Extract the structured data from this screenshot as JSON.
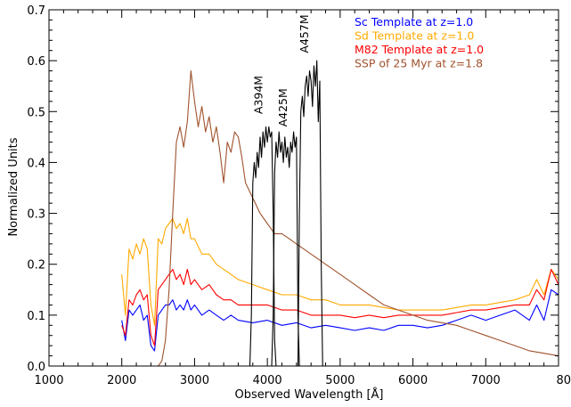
{
  "chart_data": {
    "type": "line",
    "xlabel": "Observed Wavelength [Å]",
    "ylabel": "Normalized Units",
    "xlim": [
      1000,
      8000
    ],
    "ylim": [
      0.0,
      0.7
    ],
    "x_ticks": [
      1000,
      2000,
      3000,
      4000,
      5000,
      6000,
      7000,
      8000
    ],
    "y_ticks": [
      0.0,
      0.1,
      0.2,
      0.3,
      0.4,
      0.5,
      0.6,
      0.7
    ],
    "x_tick_labels": [
      "1000",
      "2000",
      "3000",
      "4000",
      "5000",
      "6000",
      "7000",
      "8000"
    ],
    "y_tick_labels": [
      "0.0",
      "0.1",
      "0.2",
      "0.3",
      "0.4",
      "0.5",
      "0.6",
      "0.7"
    ],
    "grid": false,
    "legend_position": "top-right",
    "series": [
      {
        "name": "Sc Template at z=1.0",
        "color": "#0000ff",
        "x": [
          2000,
          2050,
          2100,
          2150,
          2200,
          2250,
          2300,
          2350,
          2400,
          2450,
          2500,
          2550,
          2600,
          2650,
          2700,
          2750,
          2800,
          2850,
          2900,
          2950,
          3000,
          3100,
          3200,
          3300,
          3400,
          3500,
          3600,
          3800,
          4000,
          4200,
          4400,
          4600,
          4800,
          5000,
          5200,
          5400,
          5600,
          5800,
          6000,
          6200,
          6400,
          6600,
          6800,
          7000,
          7200,
          7400,
          7600,
          7700,
          7800,
          7900,
          8000
        ],
        "y": [
          0.09,
          0.05,
          0.11,
          0.1,
          0.11,
          0.12,
          0.09,
          0.1,
          0.04,
          0.03,
          0.1,
          0.11,
          0.12,
          0.12,
          0.13,
          0.11,
          0.12,
          0.11,
          0.13,
          0.11,
          0.12,
          0.1,
          0.11,
          0.1,
          0.09,
          0.1,
          0.09,
          0.085,
          0.09,
          0.08,
          0.085,
          0.075,
          0.08,
          0.075,
          0.07,
          0.075,
          0.07,
          0.08,
          0.08,
          0.075,
          0.08,
          0.09,
          0.1,
          0.09,
          0.1,
          0.11,
          0.09,
          0.12,
          0.09,
          0.15,
          0.14
        ]
      },
      {
        "name": "Sd Template at z=1.0",
        "color": "#ffaa00",
        "x": [
          2000,
          2050,
          2100,
          2150,
          2200,
          2250,
          2300,
          2350,
          2400,
          2450,
          2500,
          2550,
          2600,
          2650,
          2700,
          2750,
          2800,
          2850,
          2900,
          2950,
          3000,
          3100,
          3200,
          3300,
          3400,
          3500,
          3600,
          3800,
          4000,
          4200,
          4400,
          4600,
          4800,
          5000,
          5200,
          5400,
          5600,
          5800,
          6000,
          6200,
          6400,
          6600,
          6800,
          7000,
          7200,
          7400,
          7600,
          7700,
          7800,
          7900,
          8000
        ],
        "y": [
          0.18,
          0.1,
          0.23,
          0.21,
          0.24,
          0.22,
          0.25,
          0.23,
          0.12,
          0.08,
          0.25,
          0.24,
          0.27,
          0.28,
          0.29,
          0.27,
          0.28,
          0.26,
          0.29,
          0.25,
          0.25,
          0.22,
          0.22,
          0.2,
          0.19,
          0.18,
          0.17,
          0.16,
          0.15,
          0.14,
          0.14,
          0.13,
          0.13,
          0.12,
          0.12,
          0.12,
          0.115,
          0.11,
          0.11,
          0.11,
          0.11,
          0.115,
          0.12,
          0.12,
          0.125,
          0.13,
          0.14,
          0.17,
          0.14,
          0.19,
          0.17
        ]
      },
      {
        "name": "M82 Template at z=1.0",
        "color": "#ff0000",
        "x": [
          2000,
          2050,
          2100,
          2150,
          2200,
          2250,
          2300,
          2350,
          2400,
          2450,
          2500,
          2550,
          2600,
          2650,
          2700,
          2750,
          2800,
          2850,
          2900,
          2950,
          3000,
          3100,
          3200,
          3300,
          3400,
          3500,
          3600,
          3800,
          4000,
          4200,
          4400,
          4600,
          4800,
          5000,
          5200,
          5400,
          5600,
          5800,
          6000,
          6200,
          6400,
          6600,
          6800,
          7000,
          7200,
          7400,
          7600,
          7700,
          7800,
          7900,
          8000
        ],
        "y": [
          0.08,
          0.06,
          0.13,
          0.12,
          0.14,
          0.15,
          0.13,
          0.14,
          0.06,
          0.04,
          0.15,
          0.16,
          0.17,
          0.18,
          0.19,
          0.17,
          0.18,
          0.16,
          0.19,
          0.16,
          0.17,
          0.15,
          0.16,
          0.14,
          0.13,
          0.13,
          0.12,
          0.12,
          0.12,
          0.11,
          0.11,
          0.1,
          0.1,
          0.1,
          0.095,
          0.1,
          0.095,
          0.1,
          0.1,
          0.1,
          0.1,
          0.105,
          0.11,
          0.11,
          0.115,
          0.12,
          0.12,
          0.15,
          0.13,
          0.19,
          0.16
        ]
      },
      {
        "name": "SSP of 25 Myr at z=1.8",
        "color": "#a0522d",
        "x": [
          1000,
          2500,
          2550,
          2600,
          2650,
          2700,
          2750,
          2800,
          2850,
          2900,
          2950,
          3000,
          3050,
          3100,
          3150,
          3200,
          3250,
          3300,
          3350,
          3400,
          3450,
          3500,
          3550,
          3600,
          3650,
          3700,
          3800,
          3900,
          4000,
          4100,
          4200,
          4300,
          4400,
          4500,
          4600,
          4800,
          5000,
          5200,
          5400,
          5600,
          5800,
          6000,
          6200,
          6400,
          6600,
          6800,
          7000,
          7200,
          7400,
          7600,
          7800,
          8000
        ],
        "y": [
          0.0,
          0.0,
          0.01,
          0.05,
          0.15,
          0.3,
          0.44,
          0.47,
          0.43,
          0.48,
          0.58,
          0.52,
          0.47,
          0.51,
          0.46,
          0.49,
          0.44,
          0.47,
          0.42,
          0.36,
          0.44,
          0.42,
          0.46,
          0.45,
          0.41,
          0.36,
          0.33,
          0.3,
          0.28,
          0.26,
          0.26,
          0.25,
          0.24,
          0.23,
          0.22,
          0.2,
          0.18,
          0.16,
          0.14,
          0.12,
          0.11,
          0.1,
          0.09,
          0.085,
          0.08,
          0.07,
          0.06,
          0.05,
          0.04,
          0.03,
          0.025,
          0.02
        ]
      },
      {
        "name": "A394M",
        "color": "#000000",
        "x": [
          3760,
          3780,
          3800,
          3820,
          3840,
          3860,
          3880,
          3900,
          3920,
          3940,
          3960,
          3980,
          4000,
          4020,
          4040,
          4060,
          4080,
          4100,
          4120
        ],
        "y": [
          0.0,
          0.1,
          0.36,
          0.4,
          0.37,
          0.42,
          0.39,
          0.45,
          0.41,
          0.46,
          0.43,
          0.47,
          0.44,
          0.47,
          0.45,
          0.46,
          0.3,
          0.05,
          0.0
        ]
      },
      {
        "name": "A425M",
        "color": "#000000",
        "x": [
          4060,
          4080,
          4100,
          4120,
          4140,
          4160,
          4180,
          4200,
          4220,
          4240,
          4260,
          4280,
          4300,
          4320,
          4340,
          4360,
          4380,
          4400,
          4420,
          4440
        ],
        "y": [
          0.0,
          0.1,
          0.38,
          0.44,
          0.41,
          0.46,
          0.42,
          0.44,
          0.4,
          0.45,
          0.41,
          0.43,
          0.39,
          0.44,
          0.42,
          0.46,
          0.43,
          0.45,
          0.1,
          0.0
        ]
      },
      {
        "name": "A457M",
        "color": "#000000",
        "x": [
          4420,
          4440,
          4460,
          4480,
          4500,
          4520,
          4540,
          4560,
          4580,
          4600,
          4620,
          4640,
          4660,
          4680,
          4700,
          4720,
          4740,
          4760
        ],
        "y": [
          0.0,
          0.3,
          0.5,
          0.53,
          0.49,
          0.55,
          0.57,
          0.53,
          0.58,
          0.56,
          0.51,
          0.59,
          0.55,
          0.6,
          0.48,
          0.56,
          0.2,
          0.0
        ]
      }
    ],
    "legend": [
      {
        "label": "Sc Template at z=1.0",
        "color": "#0000ff"
      },
      {
        "label": "Sd Template at z=1.0",
        "color": "#ffaa00"
      },
      {
        "label": "M82 Template at z=1.0",
        "color": "#ff0000"
      },
      {
        "label": "SSP of 25 Myr at z=1.8",
        "color": "#a0522d"
      }
    ],
    "annotations": [
      {
        "text": "A394M",
        "x": 3930,
        "y": 0.495
      },
      {
        "text": "A425M",
        "x": 4270,
        "y": 0.47
      },
      {
        "text": "A457M",
        "x": 4560,
        "y": 0.615
      }
    ]
  }
}
